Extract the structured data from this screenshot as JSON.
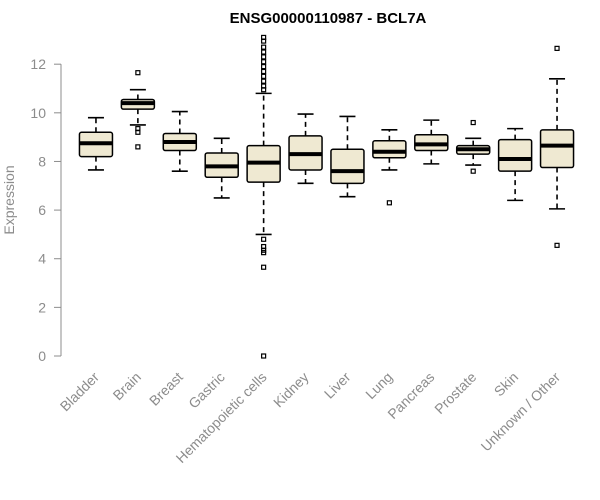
{
  "chart_data": {
    "type": "boxplot",
    "title": "ENSG00000110987 - BCL7A",
    "xlabel": "",
    "ylabel": "Expression",
    "ylim": [
      0,
      13.2
    ],
    "yticks": [
      0,
      2,
      4,
      6,
      8,
      10,
      12
    ],
    "categories": [
      "Bladder",
      "Brain",
      "Breast",
      "Gastric",
      "Hematopoietic cells",
      "Kidney",
      "Liver",
      "Lung",
      "Pancreas",
      "Prostate",
      "Skin",
      "Unknown / Other"
    ],
    "boxes": [
      {
        "name": "Bladder",
        "min": 7.65,
        "q1": 8.2,
        "median": 8.75,
        "q3": 9.2,
        "max": 9.8,
        "outliers": []
      },
      {
        "name": "Brain",
        "min": 9.5,
        "q1": 10.15,
        "median": 10.4,
        "q3": 10.55,
        "max": 10.95,
        "outliers": [
          11.65,
          9.35,
          9.2,
          8.6
        ]
      },
      {
        "name": "Breast",
        "min": 7.6,
        "q1": 8.45,
        "median": 8.8,
        "q3": 9.15,
        "max": 10.05,
        "outliers": []
      },
      {
        "name": "Gastric",
        "min": 6.5,
        "q1": 7.35,
        "median": 7.8,
        "q3": 8.35,
        "max": 8.95,
        "outliers": []
      },
      {
        "name": "Hematopoietic cells",
        "min": 5.0,
        "q1": 7.15,
        "median": 7.95,
        "q3": 8.65,
        "max": 10.8,
        "outliers": [
          13.1,
          12.95,
          12.7,
          12.5,
          12.3,
          12.1,
          11.9,
          11.7,
          11.5,
          11.3,
          11.1,
          10.95,
          4.8,
          4.5,
          4.35,
          4.25,
          3.65,
          0.0
        ]
      },
      {
        "name": "Kidney",
        "min": 7.1,
        "q1": 7.65,
        "median": 8.3,
        "q3": 9.05,
        "max": 9.95,
        "outliers": []
      },
      {
        "name": "Liver",
        "min": 6.55,
        "q1": 7.1,
        "median": 7.6,
        "q3": 8.5,
        "max": 9.85,
        "outliers": []
      },
      {
        "name": "Lung",
        "min": 7.65,
        "q1": 8.15,
        "median": 8.4,
        "q3": 8.85,
        "max": 9.3,
        "outliers": [
          6.3
        ]
      },
      {
        "name": "Pancreas",
        "min": 7.9,
        "q1": 8.45,
        "median": 8.7,
        "q3": 9.1,
        "max": 9.7,
        "outliers": []
      },
      {
        "name": "Prostate",
        "min": 7.85,
        "q1": 8.3,
        "median": 8.5,
        "q3": 8.65,
        "max": 8.95,
        "outliers": [
          9.6,
          7.6
        ]
      },
      {
        "name": "Skin",
        "min": 6.4,
        "q1": 7.6,
        "median": 8.1,
        "q3": 8.9,
        "max": 9.35,
        "outliers": []
      },
      {
        "name": "Unknown / Other",
        "min": 6.05,
        "q1": 7.75,
        "median": 8.65,
        "q3": 9.3,
        "max": 11.4,
        "outliers": [
          12.65,
          4.55
        ]
      }
    ],
    "colors": {
      "box_fill": "#efe9d2",
      "box_stroke": "#000000",
      "axis": "#8c8c8c"
    }
  }
}
